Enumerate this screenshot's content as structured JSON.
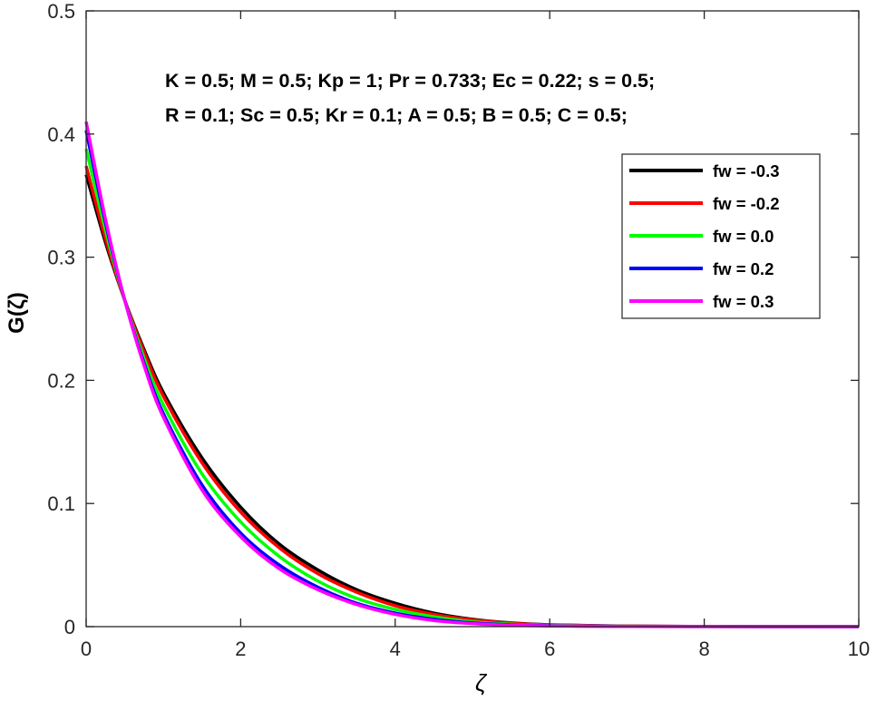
{
  "chart_data": {
    "type": "line",
    "title": "",
    "xlabel": "ζ",
    "ylabel": "G(ζ)",
    "xlim": [
      0,
      10
    ],
    "ylim": [
      0,
      0.5
    ],
    "xticks": [
      "0",
      "2",
      "4",
      "6",
      "8",
      "10"
    ],
    "yticks": [
      "0",
      "0.1",
      "0.2",
      "0.3",
      "0.4",
      "0.5"
    ],
    "grid": false,
    "legend_position": "top-right",
    "annotations": [
      "K = 0.5; M = 0.5; Kp = 1; Pr = 0.733; Ec = 0.22; s = 0.5;",
      "R = 0.1; Sc = 0.5; Kr = 0.1; A = 0.5; B = 0.5; C = 0.5;"
    ],
    "x": [
      0,
      0.25,
      0.5,
      0.75,
      1,
      1.5,
      2,
      2.5,
      3,
      3.5,
      4,
      4.5,
      5,
      5.5,
      6,
      7,
      8,
      9,
      10
    ],
    "series": [
      {
        "name": "fw = -0.3",
        "color": "#000000",
        "values": [
          0.367,
          0.312,
          0.265,
          0.225,
          0.19,
          0.137,
          0.097,
          0.067,
          0.046,
          0.03,
          0.019,
          0.011,
          0.006,
          0.003,
          0.0015,
          0.0005,
          0.0002,
          0.0001,
          0.0
        ]
      },
      {
        "name": "fw = -0.2",
        "color": "#ff0000",
        "values": [
          0.374,
          0.315,
          0.265,
          0.223,
          0.187,
          0.133,
          0.093,
          0.064,
          0.043,
          0.028,
          0.017,
          0.01,
          0.0055,
          0.0028,
          0.0014,
          0.0004,
          0.0002,
          0.0001,
          0.0
        ]
      },
      {
        "name": "fw = 0.0",
        "color": "#00ff00",
        "values": [
          0.388,
          0.322,
          0.265,
          0.218,
          0.18,
          0.124,
          0.085,
          0.057,
          0.037,
          0.023,
          0.014,
          0.008,
          0.004,
          0.002,
          0.001,
          0.0003,
          0.0001,
          0.0,
          0.0
        ]
      },
      {
        "name": "fw = 0.2",
        "color": "#0000ff",
        "values": [
          0.403,
          0.328,
          0.265,
          0.214,
          0.173,
          0.115,
          0.076,
          0.05,
          0.032,
          0.019,
          0.011,
          0.006,
          0.003,
          0.0015,
          0.0007,
          0.0002,
          0.0001,
          0.0,
          0.0
        ]
      },
      {
        "name": "fw = 0.3",
        "color": "#ff00ff",
        "values": [
          0.41,
          0.331,
          0.265,
          0.212,
          0.17,
          0.111,
          0.073,
          0.047,
          0.03,
          0.018,
          0.01,
          0.005,
          0.0025,
          0.0012,
          0.0006,
          0.0002,
          0.0001,
          0.0,
          0.0
        ]
      }
    ]
  }
}
